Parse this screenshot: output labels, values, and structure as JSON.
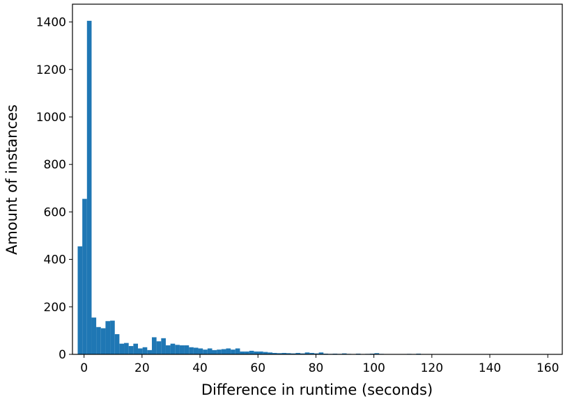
{
  "chart_data": {
    "type": "histogram",
    "xlabel": "Difference in runtime (seconds)",
    "ylabel": "Amount of instances",
    "color": "#1f77b4",
    "bins": [
      -2.2,
      -0.6,
      1,
      2.6,
      4.2,
      5.8,
      7.4,
      9,
      10.6,
      12.2,
      13.8,
      15.4,
      17,
      18.6,
      20.2,
      21.8,
      23.4,
      25,
      26.6,
      28.2,
      29.8,
      31.4,
      33,
      34.6,
      36.2,
      37.8,
      39.4,
      41,
      42.6,
      44.2,
      45.8,
      47.4,
      49,
      50.6,
      52.2,
      53.8,
      55.4,
      57,
      58.6,
      60.2,
      61.8,
      63.4,
      65,
      66.6,
      68.2,
      69.8,
      71.4,
      73,
      74.6,
      76.2,
      77.8,
      79.4,
      81,
      82.6,
      84.2,
      85.8,
      87.4,
      89,
      90.6,
      92.2,
      93.8,
      95.4,
      97,
      98.6,
      100.2,
      101.8,
      103.4,
      105,
      106.6,
      108.2,
      109.8,
      111.4,
      113,
      114.6,
      116.2,
      117.8,
      119.4,
      121,
      122.6,
      124.2,
      125.8,
      127.4,
      129,
      130.6,
      132.2,
      133.8,
      135.4,
      137,
      138.6,
      140.2,
      141.8,
      143.4,
      145,
      146.6,
      148.2,
      149.8,
      151.4,
      153,
      154.6,
      156.2,
      157.8
    ],
    "values": [
      455,
      655,
      1405,
      155,
      115,
      110,
      140,
      142,
      85,
      45,
      48,
      35,
      45,
      25,
      30,
      18,
      72,
      55,
      68,
      38,
      45,
      40,
      38,
      38,
      30,
      28,
      25,
      20,
      25,
      18,
      20,
      22,
      25,
      20,
      25,
      12,
      12,
      15,
      12,
      12,
      10,
      8,
      6,
      5,
      6,
      5,
      4,
      6,
      4,
      8,
      6,
      4,
      8,
      3,
      2,
      3,
      2,
      4,
      2,
      1,
      3,
      1,
      2,
      3,
      5,
      2,
      1,
      1,
      1,
      1,
      1,
      2,
      1,
      3,
      1,
      1,
      0,
      1,
      0,
      1,
      0,
      0,
      1,
      0,
      1,
      0,
      0,
      0,
      1,
      0,
      0,
      0,
      0,
      1,
      0,
      0,
      0,
      0,
      0,
      1
    ],
    "xlim": [
      -4,
      165
    ],
    "ylim": [
      0,
      1475
    ],
    "xticks": [
      0,
      20,
      40,
      60,
      80,
      100,
      120,
      140,
      160
    ],
    "yticks": [
      0,
      200,
      400,
      600,
      800,
      1000,
      1200,
      1400
    ]
  }
}
